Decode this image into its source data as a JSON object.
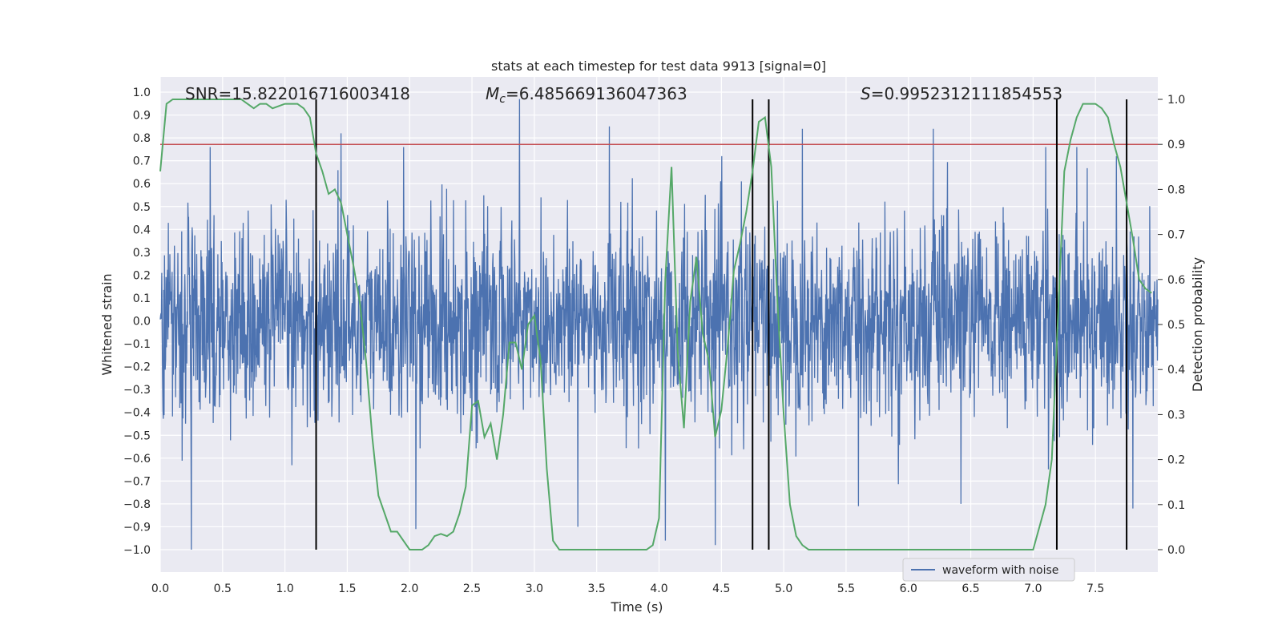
{
  "chart_data": {
    "type": "line",
    "title": "stats at each timestep for test data 9913 [signal=0]",
    "xlabel": "Time (s)",
    "ylabel_left": "Whitened strain",
    "ylabel_right": "Detection probability",
    "xlim": [
      0,
      8
    ],
    "ylim_left": [
      -1.1,
      1.05
    ],
    "ylim_right": [
      0.0,
      1.0
    ],
    "grid": true,
    "legend": {
      "placement": "bottom-right",
      "entries": [
        "waveform with noise"
      ]
    },
    "annotations": {
      "snr": "SNR=15.822016716003418",
      "mc": "=6.485669136047363",
      "mc_symbol": "M",
      "mc_subscript": "c",
      "s": "=0.9952312111854553",
      "s_symbol": "S"
    },
    "x_ticks": [
      "0.0",
      "0.5",
      "1.0",
      "1.5",
      "2.0",
      "2.5",
      "3.0",
      "3.5",
      "4.0",
      "4.5",
      "5.0",
      "5.5",
      "6.0",
      "6.5",
      "7.0",
      "7.5"
    ],
    "y_ticks_left": [
      "1.0",
      "0.9",
      "0.8",
      "0.7",
      "0.6",
      "0.5",
      "0.4",
      "0.3",
      "0.2",
      "0.1",
      "0.0",
      "-0.1",
      "-0.2",
      "-0.3",
      "-0.4",
      "-0.5",
      "-0.6",
      "-0.7",
      "-0.8",
      "-0.9",
      "-1.0"
    ],
    "y_ticks_right": [
      "1.0",
      "0.9",
      "0.8",
      "0.7",
      "0.6",
      "0.5",
      "0.4",
      "0.3",
      "0.2",
      "0.1",
      "0.0"
    ],
    "threshold": {
      "value": 0.9,
      "axis": "right",
      "color": "#c44e52"
    },
    "vertical_markers": [
      1.25,
      4.75,
      4.88,
      7.19,
      7.75
    ],
    "series": [
      {
        "name": "waveform with noise",
        "axis": "left",
        "color": "#4c72b0",
        "description": "dense noisy strain waveform",
        "envelope_typical": [
          -0.42,
          0.38
        ],
        "peaks": [
          {
            "x": 0.25,
            "y": -1.0
          },
          {
            "x": 0.4,
            "y": 0.76
          },
          {
            "x": 1.45,
            "y": 0.82
          },
          {
            "x": 1.95,
            "y": 0.76
          },
          {
            "x": 2.05,
            "y": -0.91
          },
          {
            "x": 2.88,
            "y": 0.97
          },
          {
            "x": 3.35,
            "y": -0.9
          },
          {
            "x": 3.6,
            "y": 0.85
          },
          {
            "x": 4.05,
            "y": -0.96
          },
          {
            "x": 4.45,
            "y": -0.98
          },
          {
            "x": 5.15,
            "y": 0.84
          },
          {
            "x": 5.6,
            "y": -0.81
          },
          {
            "x": 6.2,
            "y": 0.84
          },
          {
            "x": 6.42,
            "y": -0.8
          },
          {
            "x": 7.1,
            "y": 0.76
          },
          {
            "x": 7.35,
            "y": 0.76
          },
          {
            "x": 7.8,
            "y": -0.82
          }
        ]
      },
      {
        "axis": "right",
        "color": "#55a868",
        "x": [
          0.0,
          0.05,
          0.1,
          0.2,
          0.3,
          0.4,
          0.5,
          0.6,
          0.65,
          0.7,
          0.75,
          0.8,
          0.85,
          0.9,
          0.95,
          1.0,
          1.05,
          1.1,
          1.15,
          1.2,
          1.25,
          1.3,
          1.35,
          1.4,
          1.45,
          1.5,
          1.55,
          1.6,
          1.65,
          1.7,
          1.75,
          1.8,
          1.85,
          1.9,
          1.95,
          2.0,
          2.05,
          2.1,
          2.15,
          2.2,
          2.25,
          2.3,
          2.35,
          2.4,
          2.45,
          2.5,
          2.55,
          2.6,
          2.65,
          2.7,
          2.75,
          2.8,
          2.85,
          2.9,
          2.95,
          3.0,
          3.05,
          3.1,
          3.15,
          3.2,
          3.3,
          3.4,
          3.5,
          3.6,
          3.7,
          3.8,
          3.9,
          3.95,
          4.0,
          4.05,
          4.1,
          4.15,
          4.2,
          4.25,
          4.3,
          4.35,
          4.4,
          4.45,
          4.5,
          4.55,
          4.6,
          4.65,
          4.7,
          4.75,
          4.8,
          4.85,
          4.9,
          4.95,
          5.0,
          5.05,
          5.1,
          5.15,
          5.2,
          5.3,
          5.5,
          5.7,
          6.0,
          6.2,
          6.5,
          6.7,
          6.9,
          7.0,
          7.05,
          7.1,
          7.15,
          7.2,
          7.25,
          7.3,
          7.35,
          7.4,
          7.45,
          7.5,
          7.55,
          7.6,
          7.65,
          7.7,
          7.75,
          7.8,
          7.85,
          7.9,
          7.95
        ],
        "y": [
          0.84,
          0.99,
          1.0,
          1.0,
          1.0,
          1.0,
          1.0,
          1.0,
          1.0,
          0.99,
          0.98,
          0.99,
          0.99,
          0.98,
          0.985,
          0.99,
          0.99,
          0.99,
          0.98,
          0.96,
          0.88,
          0.84,
          0.79,
          0.8,
          0.77,
          0.7,
          0.63,
          0.55,
          0.42,
          0.25,
          0.12,
          0.08,
          0.04,
          0.04,
          0.02,
          0.0,
          0.0,
          0.0,
          0.01,
          0.03,
          0.035,
          0.03,
          0.04,
          0.08,
          0.14,
          0.32,
          0.33,
          0.25,
          0.28,
          0.2,
          0.3,
          0.46,
          0.46,
          0.4,
          0.5,
          0.52,
          0.42,
          0.18,
          0.02,
          0.0,
          0.0,
          0.0,
          0.0,
          0.0,
          0.0,
          0.0,
          0.0,
          0.01,
          0.07,
          0.6,
          0.85,
          0.44,
          0.27,
          0.55,
          0.65,
          0.48,
          0.42,
          0.25,
          0.31,
          0.45,
          0.62,
          0.68,
          0.75,
          0.84,
          0.95,
          0.96,
          0.85,
          0.55,
          0.3,
          0.1,
          0.03,
          0.01,
          0.0,
          0.0,
          0.0,
          0.0,
          0.0,
          0.0,
          0.0,
          0.0,
          0.0,
          0.0,
          0.05,
          0.1,
          0.2,
          0.52,
          0.84,
          0.91,
          0.96,
          0.99,
          0.99,
          0.99,
          0.98,
          0.96,
          0.9,
          0.85,
          0.77,
          0.69,
          0.6,
          0.58,
          0.57
        ]
      }
    ]
  }
}
